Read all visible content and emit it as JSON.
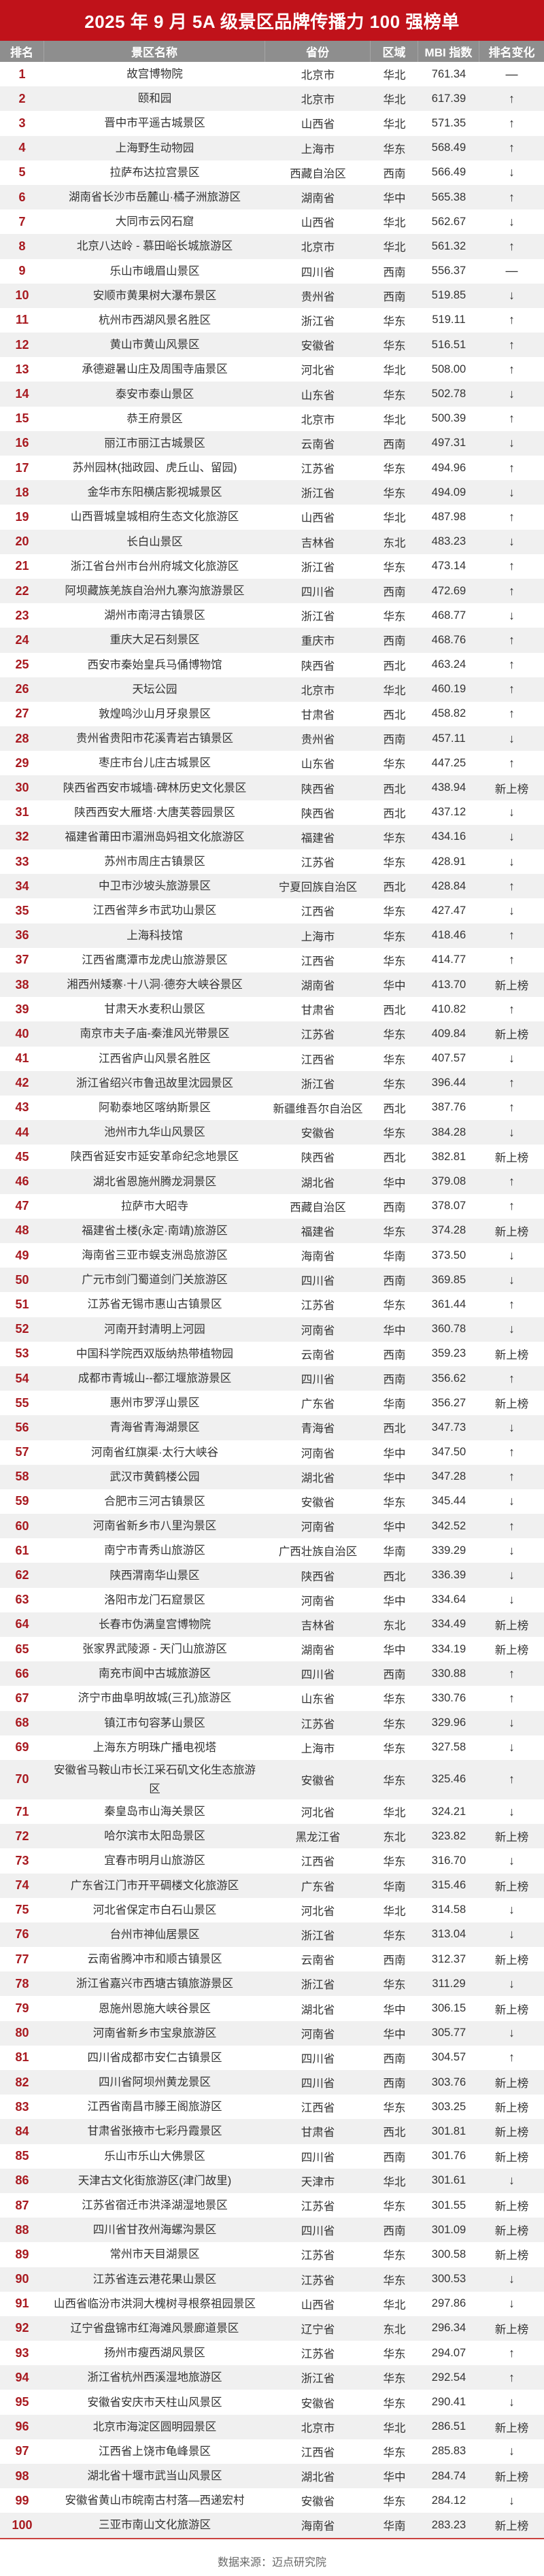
{
  "title": "2025 年 9 月 5A 级景区品牌传播力 100 强榜单",
  "columns": [
    "排名",
    "景区名称",
    "省份",
    "区域",
    "MBI 指数",
    "排名变化"
  ],
  "change_symbols": {
    "same": "—",
    "up": "↑",
    "down": "↓",
    "new": "新上榜"
  },
  "colors": {
    "title_bg": "#c0121a",
    "header_bg": "#8e8e8e",
    "rank_text": "#a8191f",
    "alt_row": "#f0f0f0"
  },
  "rows": [
    [
      "1",
      "故宫博物院",
      "北京市",
      "华北",
      "761.34",
      "—"
    ],
    [
      "2",
      "颐和园",
      "北京市",
      "华北",
      "617.39",
      "↑"
    ],
    [
      "3",
      "晋中市平遥古城景区",
      "山西省",
      "华北",
      "571.35",
      "↑"
    ],
    [
      "4",
      "上海野生动物园",
      "上海市",
      "华东",
      "568.49",
      "↑"
    ],
    [
      "5",
      "拉萨布达拉宫景区",
      "西藏自治区",
      "西南",
      "566.49",
      "↓"
    ],
    [
      "6",
      "湖南省长沙市岳麓山·橘子洲旅游区",
      "湖南省",
      "华中",
      "565.38",
      "↑"
    ],
    [
      "7",
      "大同市云冈石窟",
      "山西省",
      "华北",
      "562.67",
      "↓"
    ],
    [
      "8",
      "北京八达岭 - 慕田峪长城旅游区",
      "北京市",
      "华北",
      "561.32",
      "↑"
    ],
    [
      "9",
      "乐山市峨眉山景区",
      "四川省",
      "西南",
      "556.37",
      "—"
    ],
    [
      "10",
      "安顺市黄果树大瀑布景区",
      "贵州省",
      "西南",
      "519.85",
      "↓"
    ],
    [
      "11",
      "杭州市西湖风景名胜区",
      "浙江省",
      "华东",
      "519.11",
      "↑"
    ],
    [
      "12",
      "黄山市黄山风景区",
      "安徽省",
      "华东",
      "516.51",
      "↑"
    ],
    [
      "13",
      "承德避暑山庄及周围寺庙景区",
      "河北省",
      "华北",
      "508.00",
      "↑"
    ],
    [
      "14",
      "泰安市泰山景区",
      "山东省",
      "华东",
      "502.78",
      "↓"
    ],
    [
      "15",
      "恭王府景区",
      "北京市",
      "华北",
      "500.39",
      "↑"
    ],
    [
      "16",
      "丽江市丽江古城景区",
      "云南省",
      "西南",
      "497.31",
      "↓"
    ],
    [
      "17",
      "苏州园林(拙政园、虎丘山、留园)",
      "江苏省",
      "华东",
      "494.96",
      "↑"
    ],
    [
      "18",
      "金华市东阳横店影视城景区",
      "浙江省",
      "华东",
      "494.09",
      "↓"
    ],
    [
      "19",
      "山西晋城皇城相府生态文化旅游区",
      "山西省",
      "华北",
      "487.98",
      "↑"
    ],
    [
      "20",
      "长白山景区",
      "吉林省",
      "东北",
      "483.23",
      "↓"
    ],
    [
      "21",
      "浙江省台州市台州府城文化旅游区",
      "浙江省",
      "华东",
      "473.14",
      "↑"
    ],
    [
      "22",
      "阿坝藏族羌族自治州九寨沟旅游景区",
      "四川省",
      "西南",
      "472.69",
      "↑"
    ],
    [
      "23",
      "湖州市南浔古镇景区",
      "浙江省",
      "华东",
      "468.77",
      "↓"
    ],
    [
      "24",
      "重庆大足石刻景区",
      "重庆市",
      "西南",
      "468.76",
      "↑"
    ],
    [
      "25",
      "西安市秦始皇兵马俑博物馆",
      "陕西省",
      "西北",
      "463.24",
      "↑"
    ],
    [
      "26",
      "天坛公园",
      "北京市",
      "华北",
      "460.19",
      "↑"
    ],
    [
      "27",
      "敦煌鸣沙山月牙泉景区",
      "甘肃省",
      "西北",
      "458.82",
      "↑"
    ],
    [
      "28",
      "贵州省贵阳市花溪青岩古镇景区",
      "贵州省",
      "西南",
      "457.11",
      "↓"
    ],
    [
      "29",
      "枣庄市台儿庄古城景区",
      "山东省",
      "华东",
      "447.25",
      "↑"
    ],
    [
      "30",
      "陕西省西安市城墙·碑林历史文化景区",
      "陕西省",
      "西北",
      "438.94",
      "新上榜"
    ],
    [
      "31",
      "陕西西安大雁塔·大唐芙蓉园景区",
      "陕西省",
      "西北",
      "437.12",
      "↓"
    ],
    [
      "32",
      "福建省莆田市湄洲岛妈祖文化旅游区",
      "福建省",
      "华东",
      "434.16",
      "↓"
    ],
    [
      "33",
      "苏州市周庄古镇景区",
      "江苏省",
      "华东",
      "428.91",
      "↓"
    ],
    [
      "34",
      "中卫市沙坡头旅游景区",
      "宁夏回族自治区",
      "西北",
      "428.84",
      "↑"
    ],
    [
      "35",
      "江西省萍乡市武功山景区",
      "江西省",
      "华东",
      "427.47",
      "↓"
    ],
    [
      "36",
      "上海科技馆",
      "上海市",
      "华东",
      "418.46",
      "↑"
    ],
    [
      "37",
      "江西省鹰潭市龙虎山旅游景区",
      "江西省",
      "华东",
      "414.77",
      "↑"
    ],
    [
      "38",
      "湘西州矮寨·十八洞·德夯大峡谷景区",
      "湖南省",
      "华中",
      "413.70",
      "新上榜"
    ],
    [
      "39",
      "甘肃天水麦积山景区",
      "甘肃省",
      "西北",
      "410.82",
      "↑"
    ],
    [
      "40",
      "南京市夫子庙-秦淮风光带景区",
      "江苏省",
      "华东",
      "409.84",
      "新上榜"
    ],
    [
      "41",
      "江西省庐山风景名胜区",
      "江西省",
      "华东",
      "407.57",
      "↓"
    ],
    [
      "42",
      "浙江省绍兴市鲁迅故里沈园景区",
      "浙江省",
      "华东",
      "396.44",
      "↑"
    ],
    [
      "43",
      "阿勒泰地区喀纳斯景区",
      "新疆维吾尔自治区",
      "西北",
      "387.76",
      "↑"
    ],
    [
      "44",
      "池州市九华山风景区",
      "安徽省",
      "华东",
      "384.28",
      "↓"
    ],
    [
      "45",
      "陕西省延安市延安革命纪念地景区",
      "陕西省",
      "西北",
      "382.81",
      "新上榜"
    ],
    [
      "46",
      "湖北省恩施州腾龙洞景区",
      "湖北省",
      "华中",
      "379.08",
      "↑"
    ],
    [
      "47",
      "拉萨市大昭寺",
      "西藏自治区",
      "西南",
      "378.07",
      "↑"
    ],
    [
      "48",
      "福建省土楼(永定·南靖)旅游区",
      "福建省",
      "华东",
      "374.28",
      "新上榜"
    ],
    [
      "49",
      "海南省三亚市蜈支洲岛旅游区",
      "海南省",
      "华南",
      "373.50",
      "↓"
    ],
    [
      "50",
      "广元市剑门蜀道剑门关旅游区",
      "四川省",
      "西南",
      "369.85",
      "↓"
    ],
    [
      "51",
      "江苏省无锡市惠山古镇景区",
      "江苏省",
      "华东",
      "361.44",
      "↑"
    ],
    [
      "52",
      "河南开封清明上河园",
      "河南省",
      "华中",
      "360.78",
      "↓"
    ],
    [
      "53",
      "中国科学院西双版纳热带植物园",
      "云南省",
      "西南",
      "359.23",
      "新上榜"
    ],
    [
      "54",
      "成都市青城山--都江堰旅游景区",
      "四川省",
      "西南",
      "356.62",
      "↑"
    ],
    [
      "55",
      "惠州市罗浮山景区",
      "广东省",
      "华南",
      "356.27",
      "新上榜"
    ],
    [
      "56",
      "青海省青海湖景区",
      "青海省",
      "西北",
      "347.73",
      "↓"
    ],
    [
      "57",
      "河南省红旗渠·太行大峡谷",
      "河南省",
      "华中",
      "347.50",
      "↑"
    ],
    [
      "58",
      "武汉市黄鹤楼公园",
      "湖北省",
      "华中",
      "347.28",
      "↑"
    ],
    [
      "59",
      "合肥市三河古镇景区",
      "安徽省",
      "华东",
      "345.44",
      "↓"
    ],
    [
      "60",
      "河南省新乡市八里沟景区",
      "河南省",
      "华中",
      "342.52",
      "↑"
    ],
    [
      "61",
      "南宁市青秀山旅游区",
      "广西壮族自治区",
      "华南",
      "339.29",
      "↓"
    ],
    [
      "62",
      "陕西渭南华山景区",
      "陕西省",
      "西北",
      "336.39",
      "↓"
    ],
    [
      "63",
      "洛阳市龙门石窟景区",
      "河南省",
      "华中",
      "334.64",
      "↓"
    ],
    [
      "64",
      "长春市伪满皇宫博物院",
      "吉林省",
      "东北",
      "334.49",
      "新上榜"
    ],
    [
      "65",
      "张家界武陵源 - 天门山旅游区",
      "湖南省",
      "华中",
      "334.19",
      "新上榜"
    ],
    [
      "66",
      "南充市阆中古城旅游区",
      "四川省",
      "西南",
      "330.88",
      "↑"
    ],
    [
      "67",
      "济宁市曲阜明故城(三孔)旅游区",
      "山东省",
      "华东",
      "330.76",
      "↑"
    ],
    [
      "68",
      "镇江市句容茅山景区",
      "江苏省",
      "华东",
      "329.96",
      "↓"
    ],
    [
      "69",
      "上海东方明珠广播电视塔",
      "上海市",
      "华东",
      "327.58",
      "↓"
    ],
    [
      "70",
      "安徽省马鞍山市长江采石矶文化生态旅游区",
      "安徽省",
      "华东",
      "325.46",
      "↑"
    ],
    [
      "71",
      "秦皇岛市山海关景区",
      "河北省",
      "华北",
      "324.21",
      "↓"
    ],
    [
      "72",
      "哈尔滨市太阳岛景区",
      "黑龙江省",
      "东北",
      "323.82",
      "新上榜"
    ],
    [
      "73",
      "宜春市明月山旅游区",
      "江西省",
      "华东",
      "316.70",
      "↓"
    ],
    [
      "74",
      "广东省江门市开平碉楼文化旅游区",
      "广东省",
      "华南",
      "315.46",
      "新上榜"
    ],
    [
      "75",
      "河北省保定市白石山景区",
      "河北省",
      "华北",
      "314.58",
      "↓"
    ],
    [
      "76",
      "台州市神仙居景区",
      "浙江省",
      "华东",
      "313.04",
      "↓"
    ],
    [
      "77",
      "云南省腾冲市和顺古镇景区",
      "云南省",
      "西南",
      "312.37",
      "新上榜"
    ],
    [
      "78",
      "浙江省嘉兴市西塘古镇旅游景区",
      "浙江省",
      "华东",
      "311.29",
      "↓"
    ],
    [
      "79",
      "恩施州恩施大峡谷景区",
      "湖北省",
      "华中",
      "306.15",
      "新上榜"
    ],
    [
      "80",
      "河南省新乡市宝泉旅游区",
      "河南省",
      "华中",
      "305.77",
      "↓"
    ],
    [
      "81",
      "四川省成都市安仁古镇景区",
      "四川省",
      "西南",
      "304.57",
      "↑"
    ],
    [
      "82",
      "四川省阿坝州黄龙景区",
      "四川省",
      "西南",
      "303.76",
      "新上榜"
    ],
    [
      "83",
      "江西省南昌市滕王阁旅游区",
      "江西省",
      "华东",
      "303.25",
      "新上榜"
    ],
    [
      "84",
      "甘肃省张掖市七彩丹霞景区",
      "甘肃省",
      "西北",
      "301.81",
      "新上榜"
    ],
    [
      "85",
      "乐山市乐山大佛景区",
      "四川省",
      "西南",
      "301.76",
      "新上榜"
    ],
    [
      "86",
      "天津古文化街旅游区(津门故里)",
      "天津市",
      "华北",
      "301.61",
      "↓"
    ],
    [
      "87",
      "江苏省宿迁市洪泽湖湿地景区",
      "江苏省",
      "华东",
      "301.55",
      "新上榜"
    ],
    [
      "88",
      "四川省甘孜州海螺沟景区",
      "四川省",
      "西南",
      "301.09",
      "新上榜"
    ],
    [
      "89",
      "常州市天目湖景区",
      "江苏省",
      "华东",
      "300.58",
      "新上榜"
    ],
    [
      "90",
      "江苏省连云港花果山景区",
      "江苏省",
      "华东",
      "300.53",
      "↓"
    ],
    [
      "91",
      "山西省临汾市洪洞大槐树寻根祭祖园景区",
      "山西省",
      "华北",
      "297.86",
      "↓"
    ],
    [
      "92",
      "辽宁省盘锦市红海滩风景廊道景区",
      "辽宁省",
      "东北",
      "296.34",
      "新上榜"
    ],
    [
      "93",
      "扬州市瘦西湖风景区",
      "江苏省",
      "华东",
      "294.07",
      "↑"
    ],
    [
      "94",
      "浙江省杭州西溪湿地旅游区",
      "浙江省",
      "华东",
      "292.54",
      "↑"
    ],
    [
      "95",
      "安徽省安庆市天柱山风景区",
      "安徽省",
      "华东",
      "290.41",
      "↓"
    ],
    [
      "96",
      "北京市海淀区圆明园景区",
      "北京市",
      "华北",
      "286.51",
      "新上榜"
    ],
    [
      "97",
      "江西省上饶市龟峰景区",
      "江西省",
      "华东",
      "285.83",
      "↓"
    ],
    [
      "98",
      "湖北省十堰市武当山风景区",
      "湖北省",
      "华中",
      "284.74",
      "新上榜"
    ],
    [
      "99",
      "安徽省黄山市皖南古村落—西递宏村",
      "安徽省",
      "华东",
      "284.12",
      "↓"
    ],
    [
      "100",
      "三亚市南山文化旅游区",
      "海南省",
      "华南",
      "283.23",
      "新上榜"
    ]
  ],
  "footer": "数据来源：迈点研究院"
}
